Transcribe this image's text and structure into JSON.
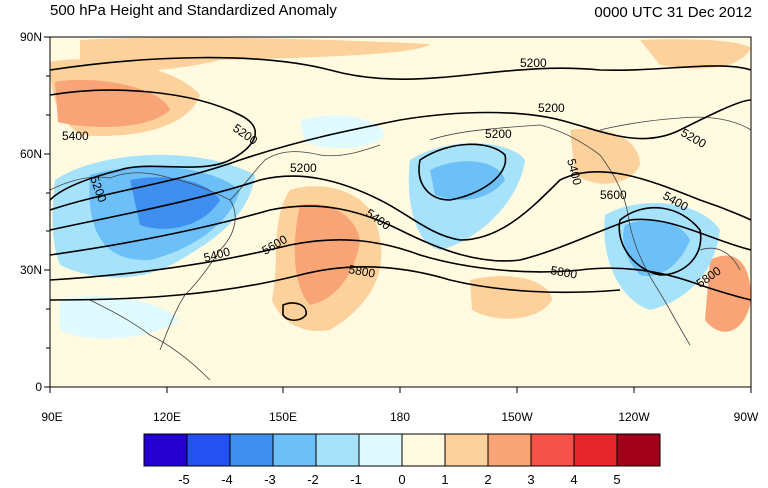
{
  "title_left": "500 hPa Height and Standardized Anomaly",
  "title_right": "0000 UTC 31 Dec 2012",
  "y_ticks": [
    "90N",
    "60N",
    "30N",
    "0"
  ],
  "x_ticks": [
    "90E",
    "120E",
    "150E",
    "180",
    "150W",
    "120W",
    "90W"
  ],
  "contour_labels": [
    "5200",
    "5200",
    "5200",
    "5200",
    "5200",
    "5200",
    "5200",
    "5400",
    "5400",
    "5400",
    "5400",
    "5400",
    "5600",
    "5600",
    "5800",
    "5800",
    "5800"
  ],
  "colorbar": {
    "labels": [
      "-5",
      "-4",
      "-3",
      "-2",
      "-1",
      "0",
      "1",
      "2",
      "3",
      "4",
      "5"
    ],
    "colors": [
      "#2400d0",
      "#2452f0",
      "#3f8ff0",
      "#6cc0f7",
      "#a6e3fb",
      "#e0fbff",
      "#fffae0",
      "#fdd19b",
      "#f9a476",
      "#f5524a",
      "#e6262c",
      "#a3001b"
    ]
  }
}
